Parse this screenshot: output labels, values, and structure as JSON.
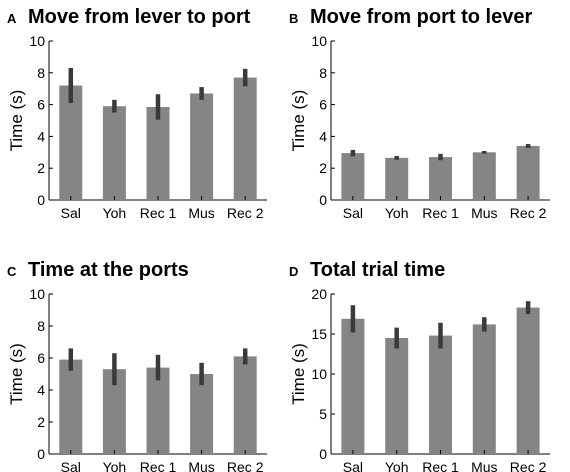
{
  "chart_data": [
    {
      "type": "bar",
      "panel_label": "A",
      "title": "Move from lever to port",
      "ylabel": "Time (s)",
      "xlabel": "",
      "categories": [
        "Sal",
        "Yoh",
        "Rec 1",
        "Mus",
        "Rec 2"
      ],
      "values": [
        7.2,
        5.9,
        5.85,
        6.7,
        7.7
      ],
      "errors": [
        1.1,
        0.4,
        0.8,
        0.4,
        0.55
      ],
      "ylim": [
        0,
        10
      ],
      "yticks": [
        "0",
        "2",
        "4",
        "6",
        "8",
        "10"
      ],
      "grid": false,
      "color": "#858585",
      "error_color": "#3a3a3a"
    },
    {
      "type": "bar",
      "panel_label": "B",
      "title": "Move from port to lever",
      "ylabel": "Time (s)",
      "xlabel": "",
      "categories": [
        "Sal",
        "Yoh",
        "Rec 1",
        "Mus",
        "Rec 2"
      ],
      "values": [
        2.95,
        2.65,
        2.7,
        3.0,
        3.4
      ],
      "errors": [
        0.2,
        0.12,
        0.2,
        0.08,
        0.12
      ],
      "ylim": [
        0,
        10
      ],
      "yticks": [
        "0",
        "2",
        "4",
        "6",
        "8",
        "10"
      ],
      "grid": false,
      "color": "#858585",
      "error_color": "#3a3a3a"
    },
    {
      "type": "bar",
      "panel_label": "C",
      "title": "Time at the ports",
      "ylabel": "Time (s)",
      "xlabel": "",
      "categories": [
        "Sal",
        "Yoh",
        "Rec 1",
        "Mus",
        "Rec 2"
      ],
      "values": [
        5.9,
        5.3,
        5.4,
        5.0,
        6.1
      ],
      "errors": [
        0.7,
        1.0,
        0.8,
        0.7,
        0.5
      ],
      "ylim": [
        0,
        10
      ],
      "yticks": [
        "0",
        "2",
        "4",
        "6",
        "8",
        "10"
      ],
      "grid": false,
      "color": "#858585",
      "error_color": "#3a3a3a"
    },
    {
      "type": "bar",
      "panel_label": "D",
      "title": "Total trial time",
      "ylabel": "Time (s)",
      "xlabel": "",
      "categories": [
        "Sal",
        "Yoh",
        "Rec 1",
        "Mus",
        "Rec 2"
      ],
      "values": [
        16.9,
        14.5,
        14.8,
        16.2,
        18.3
      ],
      "errors": [
        1.7,
        1.3,
        1.6,
        0.9,
        0.8
      ],
      "ylim": [
        0,
        20
      ],
      "yticks": [
        "0",
        "5",
        "10",
        "15",
        "20"
      ],
      "grid": false,
      "color": "#858585",
      "error_color": "#3a3a3a"
    }
  ]
}
